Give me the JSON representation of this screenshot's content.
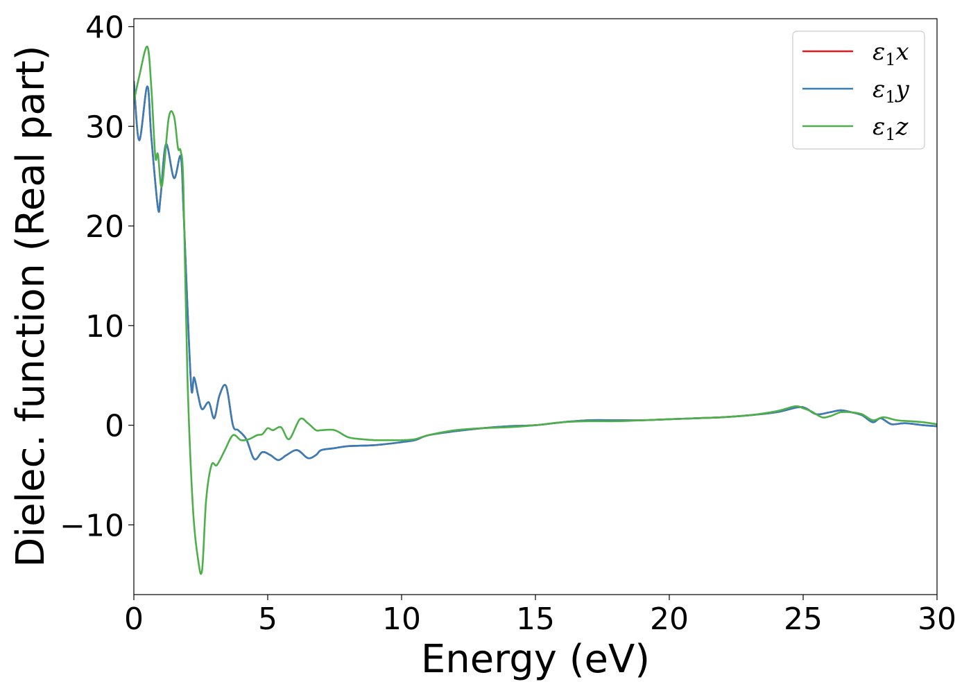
{
  "chart_data": {
    "type": "line",
    "title": "",
    "xlabel": "Energy (eV)",
    "ylabel": "Dielec. function (Real part)",
    "xlim": [
      0,
      30
    ],
    "ylim": [
      -17,
      40.8
    ],
    "xticks": [
      0,
      5,
      10,
      15,
      20,
      25,
      30
    ],
    "yticks": [
      -10,
      0,
      10,
      20,
      30,
      40
    ],
    "xtick_labels": [
      "0",
      "5",
      "10",
      "15",
      "20",
      "25",
      "30"
    ],
    "ytick_labels": [
      "−10",
      "0",
      "10",
      "20",
      "30",
      "40"
    ],
    "grid": false,
    "legend_position": "top-right",
    "series": [
      {
        "name": "ε1x",
        "symbol": "ε",
        "subscript": "1",
        "suffix": "x",
        "color": "#e41a1c",
        "x": [
          0,
          0.2,
          0.5,
          0.65,
          0.9,
          1.0,
          1.2,
          1.5,
          1.75,
          1.85,
          2.0,
          2.15,
          2.25,
          2.4,
          2.55,
          2.8,
          3.0,
          3.2,
          3.45,
          3.7,
          3.9,
          4.2,
          4.5,
          4.8,
          5.1,
          5.4,
          5.7,
          6.1,
          6.5,
          6.8,
          7.0,
          7.5,
          8.0,
          9.0,
          10.0,
          10.5,
          11.0,
          12.0,
          13.0,
          14.0,
          15.0,
          16.0,
          17.0,
          18.0,
          19.0,
          20.0,
          21.0,
          22.0,
          23.0,
          24.0,
          24.8,
          25.1,
          25.5,
          26.0,
          26.4,
          26.8,
          27.2,
          27.6,
          27.9,
          28.3,
          28.8,
          29.5,
          30.0
        ],
        "y": [
          34.5,
          28.6,
          34.0,
          29.0,
          21.8,
          23.0,
          28.2,
          24.8,
          27.0,
          22.0,
          12.0,
          3.6,
          4.8,
          3.0,
          1.6,
          2.3,
          0.7,
          3.0,
          3.9,
          0.0,
          -0.5,
          -1.4,
          -3.4,
          -2.7,
          -3.0,
          -3.5,
          -3.0,
          -2.5,
          -3.3,
          -3.0,
          -2.5,
          -2.3,
          -2.1,
          -2.0,
          -1.7,
          -1.5,
          -1.0,
          -0.6,
          -0.3,
          -0.1,
          0.0,
          0.3,
          0.5,
          0.5,
          0.5,
          0.6,
          0.7,
          0.8,
          1.0,
          1.3,
          1.8,
          1.7,
          1.1,
          1.3,
          1.5,
          1.3,
          1.0,
          0.3,
          0.7,
          0.1,
          0.2,
          0.0,
          -0.1
        ]
      },
      {
        "name": "ε1y",
        "symbol": "ε",
        "subscript": "1",
        "suffix": "y",
        "color": "#377eb8",
        "x": [
          0,
          0.2,
          0.5,
          0.65,
          0.9,
          1.0,
          1.2,
          1.5,
          1.75,
          1.85,
          2.0,
          2.15,
          2.25,
          2.4,
          2.55,
          2.8,
          3.0,
          3.2,
          3.45,
          3.7,
          3.9,
          4.2,
          4.5,
          4.8,
          5.1,
          5.4,
          5.7,
          6.1,
          6.5,
          6.8,
          7.0,
          7.5,
          8.0,
          9.0,
          10.0,
          10.5,
          11.0,
          12.0,
          13.0,
          14.0,
          15.0,
          16.0,
          17.0,
          18.0,
          19.0,
          20.0,
          21.0,
          22.0,
          23.0,
          24.0,
          24.8,
          25.1,
          25.5,
          26.0,
          26.4,
          26.8,
          27.2,
          27.6,
          27.9,
          28.3,
          28.8,
          29.5,
          30.0
        ],
        "y": [
          34.5,
          28.6,
          34.0,
          29.0,
          21.8,
          23.0,
          28.2,
          24.8,
          27.0,
          22.0,
          12.0,
          3.6,
          4.8,
          3.0,
          1.6,
          2.3,
          0.7,
          3.0,
          3.9,
          0.0,
          -0.5,
          -1.4,
          -3.4,
          -2.7,
          -3.0,
          -3.5,
          -3.0,
          -2.5,
          -3.3,
          -3.0,
          -2.5,
          -2.3,
          -2.1,
          -2.0,
          -1.7,
          -1.5,
          -1.0,
          -0.6,
          -0.3,
          -0.1,
          0.0,
          0.3,
          0.5,
          0.5,
          0.5,
          0.6,
          0.7,
          0.8,
          1.0,
          1.3,
          1.8,
          1.7,
          1.1,
          1.3,
          1.5,
          1.3,
          1.0,
          0.3,
          0.7,
          0.1,
          0.2,
          0.0,
          -0.1
        ]
      },
      {
        "name": "ε1z",
        "symbol": "ε",
        "subscript": "1",
        "suffix": "z",
        "color": "#4daf4a",
        "x": [
          0,
          0.2,
          0.5,
          0.65,
          0.8,
          0.9,
          1.05,
          1.3,
          1.5,
          1.65,
          1.75,
          1.85,
          2.0,
          2.2,
          2.4,
          2.55,
          2.7,
          2.9,
          3.1,
          3.4,
          3.7,
          4.0,
          4.3,
          4.6,
          4.8,
          5.0,
          5.2,
          5.5,
          5.8,
          6.2,
          6.5,
          6.8,
          7.0,
          7.5,
          8.0,
          8.5,
          9.0,
          9.5,
          10.0,
          10.5,
          11.0,
          12.0,
          13.0,
          14.0,
          15.0,
          16.0,
          17.0,
          18.0,
          19.0,
          20.0,
          21.0,
          22.0,
          23.0,
          24.0,
          24.7,
          25.0,
          25.3,
          25.7,
          26.0,
          26.4,
          26.8,
          27.2,
          27.6,
          28.0,
          28.5,
          29.0,
          29.5,
          30.0
        ],
        "y": [
          32.5,
          35.0,
          38.0,
          34.0,
          27.0,
          27.2,
          24.0,
          30.8,
          31.0,
          27.8,
          27.5,
          24.0,
          5.0,
          -8.0,
          -13.5,
          -14.5,
          -7.5,
          -4.0,
          -4.0,
          -2.5,
          -1.0,
          -1.5,
          -1.4,
          -1.0,
          -0.9,
          -0.3,
          -0.5,
          -0.2,
          -1.4,
          0.6,
          0.2,
          -0.5,
          -0.5,
          -0.5,
          -1.2,
          -1.4,
          -1.5,
          -1.5,
          -1.5,
          -1.4,
          -1.0,
          -0.5,
          -0.3,
          -0.2,
          0.0,
          0.3,
          0.4,
          0.4,
          0.5,
          0.6,
          0.7,
          0.8,
          1.0,
          1.4,
          1.9,
          1.7,
          1.4,
          0.8,
          0.9,
          1.3,
          1.3,
          1.1,
          0.5,
          0.8,
          0.5,
          0.4,
          0.3,
          0.1
        ]
      }
    ]
  }
}
